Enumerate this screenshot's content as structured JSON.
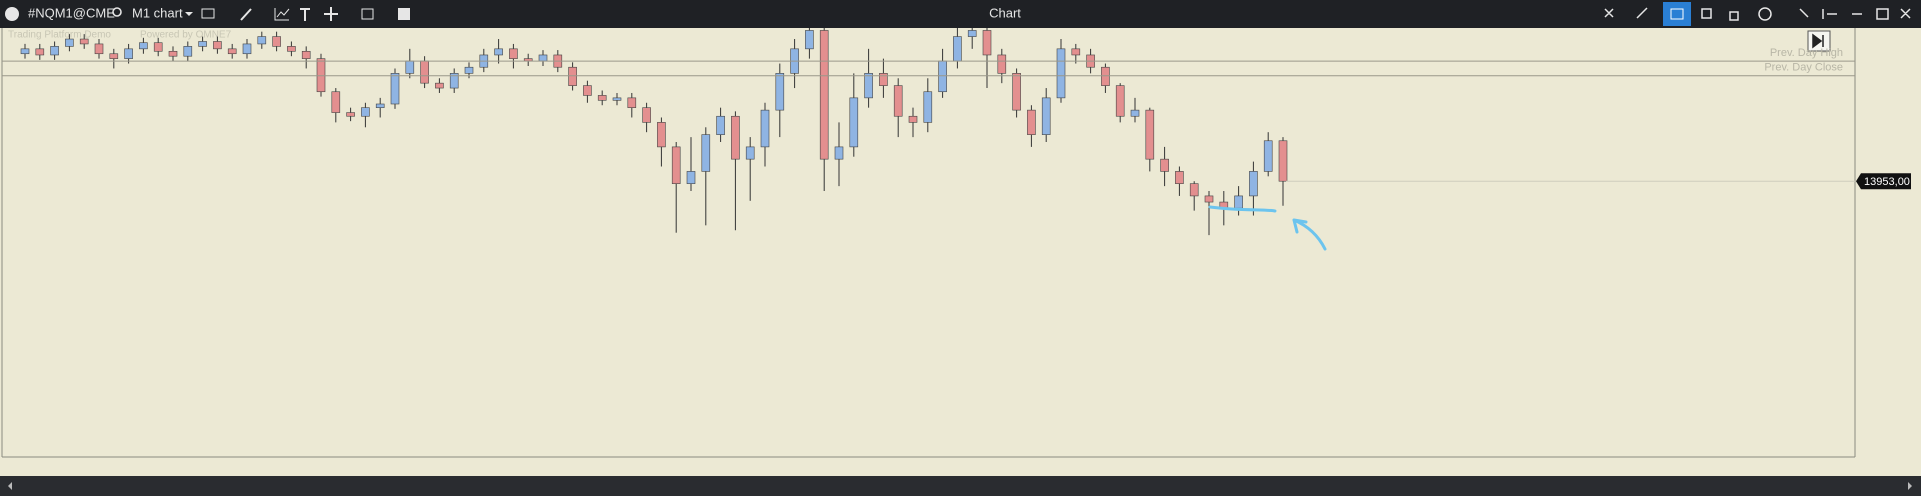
{
  "toolbar": {
    "symbol": "#NQM1@CME",
    "timeframe": "M1 chart",
    "title": "Chart"
  },
  "watermark": {
    "platform": "Trading Platform Demo",
    "powered": "Powered by OMNE7"
  },
  "chart_data": {
    "type": "candlestick",
    "ylim": [
      13896.75,
      13984.25
    ],
    "up_color": "#8fb4e3",
    "down_color": "#e38f8f",
    "levels": [
      {
        "label": "Prev. Day High",
        "value": 13977.5
      },
      {
        "label": "Prev. Day Close",
        "value": 13974.5
      }
    ],
    "last_price": {
      "value": 13953,
      "label": "13953,00"
    },
    "candles": [
      [
        13979,
        13981,
        13978,
        13980
      ],
      [
        13980,
        13981,
        13977.75,
        13978.75
      ],
      [
        13978.75,
        13981.5,
        13977.75,
        13980.5
      ],
      [
        13980.5,
        13983,
        13979.5,
        13982
      ],
      [
        13982,
        13983,
        13980,
        13981
      ],
      [
        13981,
        13982,
        13978,
        13979
      ],
      [
        13979,
        13980,
        13976,
        13978
      ],
      [
        13978,
        13981,
        13977,
        13980
      ],
      [
        13980,
        13982.25,
        13979,
        13981.25
      ],
      [
        13981.25,
        13982.25,
        13978.5,
        13979.5
      ],
      [
        13979.5,
        13980.5,
        13977.5,
        13978.5
      ],
      [
        13978.5,
        13981.5,
        13977.5,
        13980.5
      ],
      [
        13980.5,
        13982.5,
        13979.5,
        13981.5
      ],
      [
        13981.5,
        13982.5,
        13979,
        13980
      ],
      [
        13980,
        13981,
        13978,
        13979
      ],
      [
        13979,
        13982,
        13978,
        13981
      ],
      [
        13981,
        13983.5,
        13980,
        13982.5
      ],
      [
        13982.5,
        13983.5,
        13979.5,
        13980.5
      ],
      [
        13980.5,
        13981.5,
        13978.5,
        13979.5
      ],
      [
        13979.5,
        13980.5,
        13976,
        13978
      ],
      [
        13978,
        13979,
        13970.25,
        13971.25
      ],
      [
        13971.25,
        13972,
        13965,
        13967
      ],
      [
        13967,
        13968,
        13965.25,
        13966.25
      ],
      [
        13966.25,
        13969,
        13964,
        13968
      ],
      [
        13968,
        13970,
        13966,
        13968.75
      ],
      [
        13968.75,
        13976,
        13967.75,
        13975
      ],
      [
        13975,
        13980,
        13974,
        13977.5
      ],
      [
        13977.5,
        13978.5,
        13972,
        13973
      ],
      [
        13973,
        13974,
        13971,
        13972
      ],
      [
        13972,
        13976,
        13971,
        13975
      ],
      [
        13975,
        13977.25,
        13974,
        13976.25
      ],
      [
        13976.25,
        13980,
        13975.25,
        13978.75
      ],
      [
        13978.75,
        13982,
        13977,
        13980
      ],
      [
        13980,
        13981,
        13976,
        13978
      ],
      [
        13978,
        13979,
        13976.5,
        13977.5
      ],
      [
        13977.5,
        13979.75,
        13976.5,
        13978.75
      ],
      [
        13978.75,
        13979.75,
        13975.25,
        13976.25
      ],
      [
        13976.25,
        13977.25,
        13971.5,
        13972.5
      ],
      [
        13972.5,
        13973.5,
        13969,
        13970.5
      ],
      [
        13970.5,
        13971.5,
        13968.5,
        13969.5
      ],
      [
        13969.5,
        13971,
        13968.5,
        13970
      ],
      [
        13970,
        13971,
        13966,
        13968
      ],
      [
        13968,
        13969,
        13963,
        13965
      ],
      [
        13965,
        13966,
        13956,
        13960
      ],
      [
        13960,
        13961,
        13942.5,
        13952.5
      ],
      [
        13952.5,
        13962,
        13951,
        13955
      ],
      [
        13955,
        13964,
        13944,
        13962.5
      ],
      [
        13962.5,
        13968,
        13961,
        13966.25
      ],
      [
        13966.25,
        13967.25,
        13943,
        13957.5
      ],
      [
        13957.5,
        13962,
        13949,
        13960
      ],
      [
        13960,
        13969,
        13956,
        13967.5
      ],
      [
        13967.5,
        13977,
        13962,
        13975
      ],
      [
        13975,
        13982,
        13972,
        13980
      ],
      [
        13980,
        13985,
        13978,
        13983.75
      ],
      [
        13983.75,
        13985,
        13951,
        13957.5
      ],
      [
        13957.5,
        13965,
        13952,
        13960
      ],
      [
        13960,
        13975,
        13958,
        13970
      ],
      [
        13970,
        13980,
        13968,
        13975
      ],
      [
        13975,
        13978,
        13970,
        13972.5
      ],
      [
        13972.5,
        13974,
        13962,
        13966.25
      ],
      [
        13966.25,
        13968,
        13962,
        13965
      ],
      [
        13965,
        13974,
        13963,
        13971.25
      ],
      [
        13971.25,
        13980,
        13970,
        13977.5
      ],
      [
        13977.5,
        13985,
        13976,
        13982.5
      ],
      [
        13982.5,
        13985,
        13980,
        13983.75
      ],
      [
        13983.75,
        13985,
        13972,
        13978.75
      ],
      [
        13978.75,
        13980,
        13973,
        13975
      ],
      [
        13975,
        13976,
        13966,
        13967.5
      ],
      [
        13967.5,
        13968.5,
        13960,
        13962.5
      ],
      [
        13962.5,
        13972,
        13961,
        13970
      ],
      [
        13970,
        13982,
        13969,
        13980
      ],
      [
        13980,
        13981,
        13977,
        13978.75
      ],
      [
        13978.75,
        13980,
        13975,
        13976.25
      ],
      [
        13976.25,
        13977,
        13971,
        13972.5
      ],
      [
        13972.5,
        13973,
        13965,
        13966.25
      ],
      [
        13966.25,
        13970,
        13965,
        13967.5
      ],
      [
        13967.5,
        13968,
        13955,
        13957.5
      ],
      [
        13957.5,
        13960,
        13952,
        13955
      ],
      [
        13955,
        13956,
        13950,
        13952.5
      ],
      [
        13952.5,
        13953,
        13947,
        13950
      ],
      [
        13950,
        13951,
        13942,
        13948.75
      ],
      [
        13948.75,
        13951,
        13944,
        13947.5
      ],
      [
        13947.5,
        13952,
        13946,
        13950
      ],
      [
        13950,
        13957,
        13946,
        13955
      ],
      [
        13955,
        13963,
        13954,
        13961.25
      ],
      [
        13961.25,
        13962,
        13948,
        13953
      ]
    ]
  }
}
